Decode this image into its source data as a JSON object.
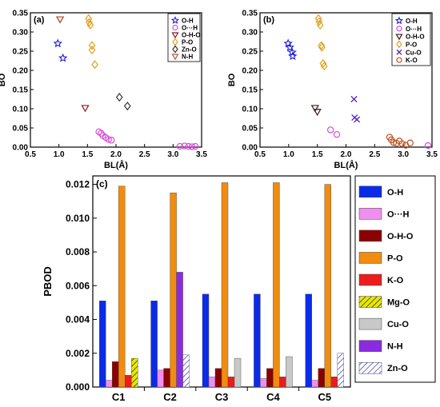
{
  "chart_data": [
    {
      "panel_label": "(a)",
      "type": "scatter",
      "xlabel": "BL(Å)",
      "ylabel": "BO",
      "xlim": [
        0.5,
        3.5
      ],
      "ylim": [
        0.0,
        0.35
      ],
      "xticks": [
        "0.5",
        "1.0",
        "1.5",
        "2.0",
        "2.5",
        "3.0",
        "3.5"
      ],
      "yticks": [
        "0.00",
        "0.05",
        "0.10",
        "0.15",
        "0.20",
        "0.25",
        "0.30",
        "0.35"
      ],
      "legend_position": "top-right",
      "series": [
        {
          "name": "O-H",
          "marker": "star",
          "color": "#1f1fd6",
          "points": [
            [
              0.98,
              0.27
            ],
            [
              1.07,
              0.232
            ]
          ]
        },
        {
          "name": "O···H",
          "marker": "circle",
          "color": "#d84bd8",
          "points": [
            [
              1.7,
              0.04
            ],
            [
              1.74,
              0.036
            ],
            [
              1.77,
              0.03
            ],
            [
              1.82,
              0.025
            ],
            [
              1.87,
              0.02
            ],
            [
              1.92,
              0.018
            ],
            [
              3.12,
              0.002
            ],
            [
              3.2,
              0.003
            ],
            [
              3.27,
              0.002
            ],
            [
              3.33,
              0.001
            ],
            [
              3.39,
              0.002
            ]
          ]
        },
        {
          "name": "O-H-O",
          "marker": "triangle-down",
          "color": "#8b1a1a",
          "points": [
            [
              1.02,
              0.333
            ],
            [
              1.46,
              0.102
            ]
          ]
        },
        {
          "name": "P-O",
          "marker": "diamond",
          "color": "#e0a020",
          "points": [
            [
              1.52,
              0.335
            ],
            [
              1.53,
              0.325
            ],
            [
              1.55,
              0.318
            ],
            [
              1.58,
              0.265
            ],
            [
              1.58,
              0.253
            ],
            [
              1.63,
              0.215
            ]
          ]
        },
        {
          "name": "Zn-O",
          "marker": "diamond",
          "color": "#333333",
          "points": [
            [
              2.06,
              0.13
            ],
            [
              2.2,
              0.107
            ]
          ]
        },
        {
          "name": "N-H",
          "marker": "triangle-down",
          "color": "#b5583a",
          "points": [
            [
              1.02,
              0.333
            ]
          ]
        }
      ]
    },
    {
      "panel_label": "(b)",
      "type": "scatter",
      "xlabel": "BL(Å)",
      "ylabel": "BO",
      "xlim": [
        0.5,
        3.5
      ],
      "ylim": [
        0.0,
        0.35
      ],
      "xticks": [
        "0.5",
        "1.0",
        "1.5",
        "2.0",
        "2.5",
        "3.0",
        "3.5"
      ],
      "yticks": [
        "0.00",
        "0.05",
        "0.10",
        "0.15",
        "0.20",
        "0.25",
        "0.30",
        "0.35"
      ],
      "legend_position": "top-right",
      "series": [
        {
          "name": "O-H",
          "marker": "star",
          "color": "#1f1fd6",
          "points": [
            [
              0.99,
              0.27
            ],
            [
              1.02,
              0.26
            ],
            [
              1.06,
              0.247
            ],
            [
              1.07,
              0.237
            ]
          ]
        },
        {
          "name": "O···H",
          "marker": "circle",
          "color": "#d84bd8",
          "points": [
            [
              1.73,
              0.045
            ],
            [
              1.84,
              0.033
            ],
            [
              3.43,
              0.004
            ]
          ]
        },
        {
          "name": "O-H-O",
          "marker": "triangle-down",
          "color": "#3a1a1a",
          "points": [
            [
              1.46,
              0.102
            ],
            [
              1.5,
              0.092
            ]
          ]
        },
        {
          "name": "P-O",
          "marker": "diamond",
          "color": "#e0a020",
          "points": [
            [
              1.52,
              0.335
            ],
            [
              1.53,
              0.327
            ],
            [
              1.55,
              0.318
            ],
            [
              1.57,
              0.265
            ],
            [
              1.58,
              0.26
            ],
            [
              1.6,
              0.218
            ],
            [
              1.62,
              0.211
            ]
          ]
        },
        {
          "name": "Cu-O",
          "marker": "x",
          "color": "#5a2bc8",
          "points": [
            [
              2.14,
              0.125
            ],
            [
              2.15,
              0.077
            ],
            [
              2.19,
              0.072
            ]
          ]
        },
        {
          "name": "K-O",
          "marker": "circle",
          "color": "#c05020",
          "points": [
            [
              2.76,
              0.026
            ],
            [
              2.79,
              0.019
            ],
            [
              2.83,
              0.012
            ],
            [
              2.88,
              0.01
            ],
            [
              2.93,
              0.016
            ],
            [
              2.98,
              0.009
            ],
            [
              3.04,
              0.005
            ],
            [
              3.12,
              0.011
            ]
          ]
        }
      ]
    },
    {
      "panel_label": "(c)",
      "type": "bar",
      "ylabel": "PBOD",
      "ylim": [
        0.0,
        0.0125
      ],
      "yticks": [
        "0.000",
        "0.002",
        "0.004",
        "0.006",
        "0.008",
        "0.010",
        "0.012"
      ],
      "categories": [
        "C1",
        "C2",
        "C3",
        "C4",
        "C5"
      ],
      "legend_position": "right",
      "series": [
        {
          "name": "O-H",
          "color": "#0a2ce8",
          "values": [
            0.0051,
            0.0051,
            0.0055,
            0.0055,
            0.0055
          ]
        },
        {
          "name": "O···H",
          "color": "#ef8ff0",
          "values": [
            0.0004,
            0.001,
            0.0006,
            0.0005,
            0.0004
          ]
        },
        {
          "name": "O-H-O",
          "color": "#8b0000",
          "values": [
            0.0015,
            0.0011,
            0.0011,
            0.0011,
            0.0011
          ]
        },
        {
          "name": "P-O",
          "color": "#f08c10",
          "values": [
            0.0119,
            0.0115,
            0.0121,
            0.0121,
            0.012
          ]
        },
        {
          "name": "K-O",
          "color": "#ec1c1c",
          "values": [
            0.0007,
            null,
            0.0006,
            0.0006,
            0.0006
          ]
        },
        {
          "name": "Mg-O",
          "color": "#e8e800",
          "values": [
            0.0017,
            null,
            null,
            null,
            null
          ]
        },
        {
          "name": "Cu-O",
          "color": "#c8c8c8",
          "values": [
            null,
            null,
            0.0017,
            0.0018,
            null
          ]
        },
        {
          "name": "N-H",
          "color": "#8a2be2",
          "values": [
            null,
            0.0068,
            null,
            null,
            null
          ]
        },
        {
          "name": "Zn-O",
          "color": "#aab8e8",
          "values": [
            null,
            0.0019,
            null,
            null,
            0.002
          ]
        }
      ]
    }
  ]
}
